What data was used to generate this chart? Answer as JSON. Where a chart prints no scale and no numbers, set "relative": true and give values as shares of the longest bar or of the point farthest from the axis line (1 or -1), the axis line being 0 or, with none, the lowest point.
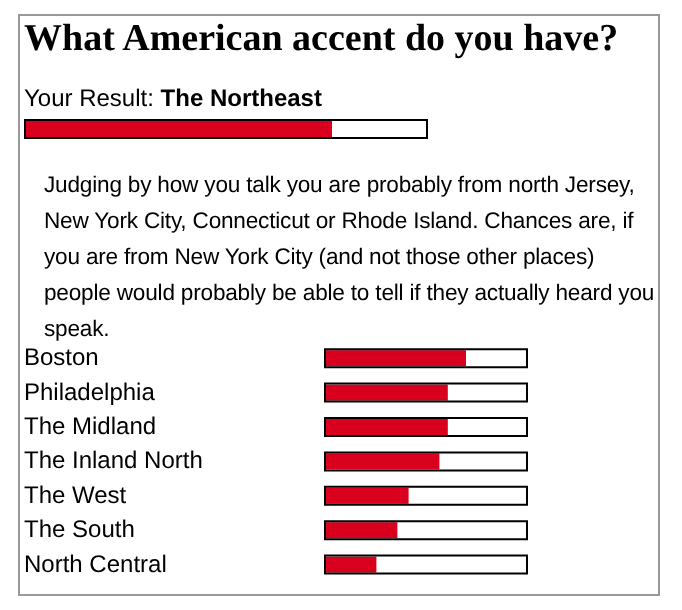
{
  "chart_data": [
    {
      "type": "bar",
      "orientation": "horizontal",
      "relative": true,
      "title": "What American accent do you have?",
      "subtitle": "Your Result:",
      "categories": [
        "The Northeast"
      ],
      "values": [
        1
      ],
      "color": "#d8001c",
      "annotations": [
        "Judging by how you talk you are probably from north Jersey, New York City, Connecticut or Rhode Island. Chances are, if you are from New York City (and not those other places) people would probably be able to tell if they actually heard you speak."
      ]
    },
    {
      "type": "bar",
      "orientation": "horizontal",
      "relative": true,
      "categories": [
        "Boston",
        "Philadelphia",
        "The Midland",
        "The Inland North",
        "The West",
        "The South",
        "North Central"
      ],
      "values": [
        1,
        0.87,
        0.87,
        0.81,
        0.59,
        0.51,
        0.36
      ],
      "color": "#d8001c"
    }
  ]
}
